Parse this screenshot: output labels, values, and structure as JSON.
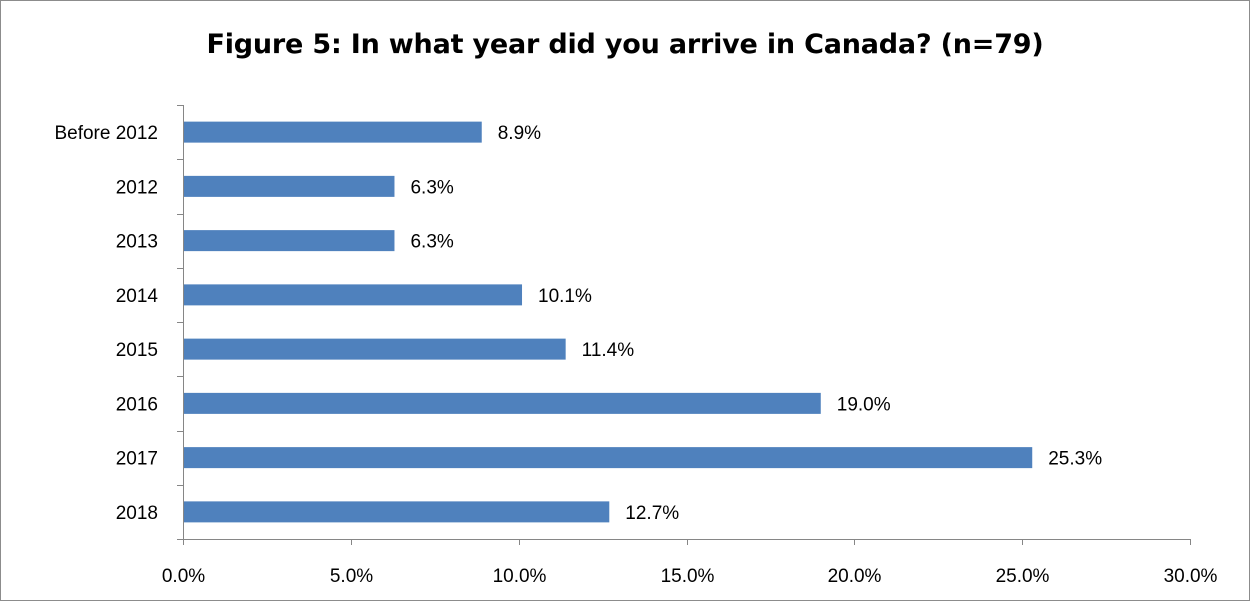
{
  "chart_data": {
    "type": "bar",
    "orientation": "horizontal",
    "title": "Figure 5: In what year did you arrive in Canada? (n=79)",
    "categories": [
      "Before 2012",
      "2012",
      "2013",
      "2014",
      "2015",
      "2016",
      "2017",
      "2018"
    ],
    "values": [
      8.9,
      6.3,
      6.3,
      10.1,
      11.4,
      19.0,
      25.3,
      12.7
    ],
    "value_labels": [
      "8.9%",
      "6.3%",
      "6.3%",
      "10.1%",
      "11.4%",
      "19.0%",
      "25.3%",
      "12.7%"
    ],
    "xlim": [
      0,
      30
    ],
    "x_ticks": [
      0,
      5,
      10,
      15,
      20,
      25,
      30
    ],
    "x_tick_labels": [
      "0.0%",
      "5.0%",
      "10.0%",
      "15.0%",
      "20.0%",
      "25.0%",
      "30.0%"
    ],
    "xlabel": "",
    "ylabel": "",
    "grid": false,
    "legend": "none",
    "bar_color": "#4F81BD"
  }
}
